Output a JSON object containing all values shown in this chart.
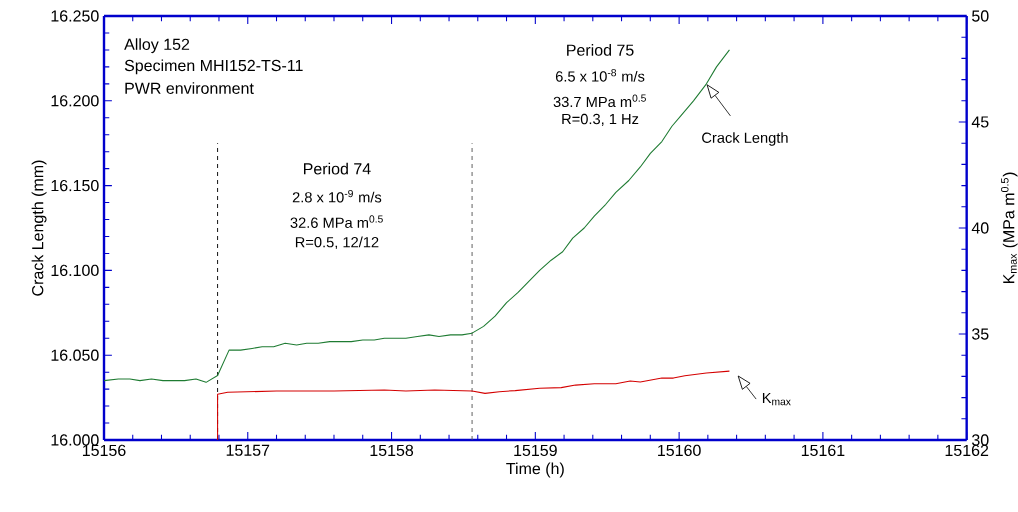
{
  "chart_data": {
    "type": "line",
    "xlabel": "Time (h)",
    "ylabel": "Crack Length (mm)",
    "y2label": "K$_{max}$ (MPa m$^{0.5}$)",
    "xlim": [
      15156,
      15162
    ],
    "xticks": [
      15156,
      15157,
      15158,
      15159,
      15160,
      15161,
      15162
    ],
    "ylim": [
      16.0,
      16.25
    ],
    "yticks": [
      {
        "value": 16.0,
        "label": "16.000"
      },
      {
        "value": 16.05,
        "label": "16.050"
      },
      {
        "value": 16.1,
        "label": "16.100"
      },
      {
        "value": 16.15,
        "label": "16.150"
      },
      {
        "value": 16.2,
        "label": "16.200"
      },
      {
        "value": 16.25,
        "label": "16.250"
      }
    ],
    "y2lim": [
      30,
      50
    ],
    "y2ticks": [
      30,
      35,
      40,
      45,
      50
    ],
    "grid": false,
    "series": [
      {
        "name": "Crack Length",
        "color": "#1e7b32",
        "x": [
          15156.0,
          15156.1,
          15156.18,
          15156.25,
          15156.33,
          15156.41,
          15156.49,
          15156.56,
          15156.64,
          15156.71,
          15156.79,
          15156.87,
          15156.95,
          15157.03,
          15157.1,
          15157.18,
          15157.26,
          15157.34,
          15157.41,
          15157.49,
          15157.57,
          15157.64,
          15157.72,
          15157.8,
          15157.88,
          15157.95,
          15158.03,
          15158.1,
          15158.18,
          15158.26,
          15158.33,
          15158.41,
          15158.49,
          15158.56,
          15158.64,
          15158.72,
          15158.8,
          15158.88,
          15158.96,
          15159.03,
          15159.11,
          15159.19,
          15159.26,
          15159.34,
          15159.41,
          15159.49,
          15159.56,
          15159.65,
          15159.73,
          15159.8,
          15159.88,
          15159.95,
          15160.01,
          15160.1,
          15160.19,
          15160.26,
          15160.35
        ],
        "values": [
          16.035,
          16.036,
          16.036,
          16.035,
          16.036,
          16.035,
          16.035,
          16.035,
          16.036,
          16.034,
          16.038,
          16.053,
          16.053,
          16.054,
          16.055,
          16.055,
          16.057,
          16.056,
          16.057,
          16.057,
          16.058,
          16.058,
          16.058,
          16.059,
          16.059,
          16.06,
          16.06,
          16.06,
          16.061,
          16.062,
          16.061,
          16.062,
          16.062,
          16.063,
          16.067,
          16.073,
          16.081,
          16.087,
          16.094,
          16.1,
          16.106,
          16.111,
          16.119,
          16.125,
          16.132,
          16.139,
          16.146,
          16.153,
          16.161,
          16.169,
          16.176,
          16.185,
          16.191,
          16.2,
          16.21,
          16.22,
          16.23
        ]
      },
      {
        "name": "K$_{max}$",
        "color": "#d40000",
        "axis": "y2",
        "x": [
          15156.79,
          15156.79,
          15156.86,
          15157.2,
          15157.6,
          15157.95,
          15158.1,
          15158.3,
          15158.56,
          15158.65,
          15158.75,
          15158.86,
          15159.03,
          15159.18,
          15159.28,
          15159.41,
          15159.56,
          15159.66,
          15159.73,
          15159.88,
          15159.96,
          15160.04,
          15160.19,
          15160.35
        ],
        "values": [
          30,
          32.16,
          32.25,
          32.31,
          32.31,
          32.36,
          32.31,
          32.36,
          32.31,
          32.2,
          32.28,
          32.33,
          32.44,
          32.47,
          32.59,
          32.65,
          32.65,
          32.78,
          32.74,
          32.92,
          32.92,
          33.03,
          33.16,
          33.25
        ]
      }
    ],
    "ref_lines": [
      {
        "axis": "x",
        "value": 15156.79,
        "color": "#000000",
        "line_style": "dashed"
      },
      {
        "axis": "x",
        "value": 15158.56,
        "color": "#555555",
        "line_style": "dashed"
      }
    ],
    "annotations": [
      "Alloy 152",
      "Specimen MHI152-TS-11",
      "PWR environment",
      "Period 74",
      "2.8 x 10$^{-9}$ m/s",
      "32.6 MPa m$^{0.5}$",
      "R=0.5, 12/12",
      "Period 75",
      "6.5 x 10$^{-8}$ m/s",
      "33.7 MPa m$^{0.5}$",
      "R=0.3,  1 Hz"
    ]
  }
}
